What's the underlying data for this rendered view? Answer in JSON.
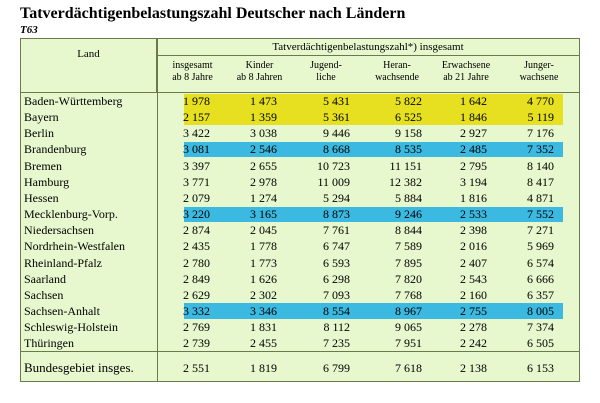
{
  "title": "Tatverdächtigenbelastungszahl Deutscher nach Ländern",
  "subtitle": "T63",
  "header": {
    "land": "Land",
    "group": "Tatverdächtigenbelastungszahl*) insgesamt",
    "columns": [
      {
        "l1": "insgesamt",
        "l2": "ab 8 Jahre"
      },
      {
        "l1": "Kinder",
        "l2": "ab 8 Jahren"
      },
      {
        "l1": "Jugend-",
        "l2": "liche"
      },
      {
        "l1": "Heran-",
        "l2": "wachsende"
      },
      {
        "l1": "Erwachsene",
        "l2": "ab 21 Jahre"
      },
      {
        "l1": "Junger-",
        "l2": "wachsene"
      }
    ]
  },
  "highlight_colors": {
    "yellow": "#e6e020",
    "blue": "#3bb9e0",
    "background": "#e8f8ce"
  },
  "rows": [
    {
      "land": "Baden-Württemberg",
      "values": [
        "1 978",
        "1 473",
        "5 431",
        "5 822",
        "1 642",
        "4 770"
      ],
      "highlight": "yellow"
    },
    {
      "land": "Bayern",
      "values": [
        "2 157",
        "1 359",
        "5 361",
        "6 525",
        "1 846",
        "5 119"
      ],
      "highlight": "yellow"
    },
    {
      "land": "Berlin",
      "values": [
        "3 422",
        "3 038",
        "9 446",
        "9 158",
        "2 927",
        "7 176"
      ],
      "highlight": ""
    },
    {
      "land": "Brandenburg",
      "values": [
        "3 081",
        "2 546",
        "8 668",
        "8 535",
        "2 485",
        "7 352"
      ],
      "highlight": "blue"
    },
    {
      "land": "Bremen",
      "values": [
        "3 397",
        "2 655",
        "10 723",
        "11 151",
        "2 795",
        "8 140"
      ],
      "highlight": ""
    },
    {
      "land": "Hamburg",
      "values": [
        "3 771",
        "2 978",
        "11 009",
        "12 382",
        "3 194",
        "8 417"
      ],
      "highlight": ""
    },
    {
      "land": "Hessen",
      "values": [
        "2 079",
        "1 274",
        "5 294",
        "5 884",
        "1 816",
        "4 871"
      ],
      "highlight": ""
    },
    {
      "land": "Mecklenburg-Vorp.",
      "values": [
        "3 220",
        "3 165",
        "8 873",
        "9 246",
        "2 533",
        "7 552"
      ],
      "highlight": "blue"
    },
    {
      "land": "Niedersachsen",
      "values": [
        "2 874",
        "2 045",
        "7 761",
        "8 844",
        "2 398",
        "7 271"
      ],
      "highlight": ""
    },
    {
      "land": "Nordrhein-Westfalen",
      "values": [
        "2 435",
        "1 778",
        "6 747",
        "7 589",
        "2 016",
        "5 969"
      ],
      "highlight": ""
    },
    {
      "land": "Rheinland-Pfalz",
      "values": [
        "2 780",
        "1 773",
        "6 593",
        "7 895",
        "2 407",
        "6 574"
      ],
      "highlight": ""
    },
    {
      "land": "Saarland",
      "values": [
        "2 849",
        "1 626",
        "6 298",
        "7 820",
        "2 543",
        "6 666"
      ],
      "highlight": ""
    },
    {
      "land": "Sachsen",
      "values": [
        "2 629",
        "2 302",
        "7 093",
        "7 768",
        "2 160",
        "6 357"
      ],
      "highlight": ""
    },
    {
      "land": "Sachsen-Anhalt",
      "values": [
        "3 332",
        "3 346",
        "8 554",
        "8 967",
        "2 755",
        "8 005"
      ],
      "highlight": "blue"
    },
    {
      "land": "Schleswig-Holstein",
      "values": [
        "2 769",
        "1 831",
        "8 112",
        "9 065",
        "2 278",
        "7 374"
      ],
      "highlight": ""
    },
    {
      "land": "Thüringen",
      "values": [
        "2 739",
        "2 455",
        "7 235",
        "7 951",
        "2 242",
        "6 505"
      ],
      "highlight": ""
    }
  ],
  "total": {
    "land": "Bundesgebiet insges.",
    "values": [
      "2 551",
      "1 819",
      "6 799",
      "7 618",
      "2 138",
      "6 153"
    ]
  }
}
